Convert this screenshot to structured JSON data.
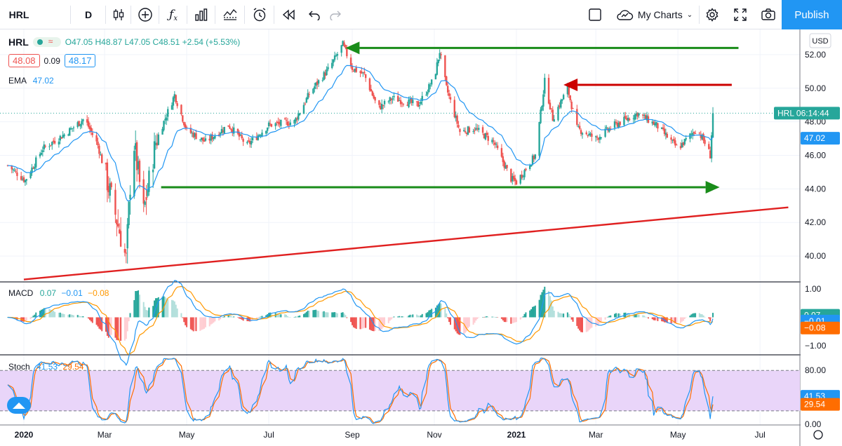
{
  "toolbar": {
    "symbol": "HRL",
    "interval": "D",
    "my_charts": "My Charts",
    "publish": "Publish"
  },
  "legend": {
    "symbol": "HRL",
    "ohlc": "O47.05  H48.87  L47.05  C48.51  +2.54 (+5.53%)",
    "bid": "48.08",
    "spread": "0.09",
    "ask": "48.17",
    "ema_label": "EMA",
    "ema_value": "47.02",
    "macd_label": "MACD",
    "macd_v1": "0.07",
    "macd_v2": "−0.01",
    "macd_v3": "−0.08",
    "stoch_label": "Stoch",
    "stoch_k": "41.53",
    "stoch_d": "29.54"
  },
  "axis": {
    "currency": "USD",
    "price_ticks": [
      "52.00",
      "50.00",
      "48.00",
      "46.00",
      "44.00",
      "42.00",
      "40.00"
    ],
    "macd_ticks": [
      "1.00",
      "0.00",
      "−1.00"
    ],
    "stoch_ticks": [
      "80.00",
      "0.00"
    ],
    "time_ticks": [
      "2020",
      "Mar",
      "May",
      "Jul",
      "Sep",
      "Nov",
      "2021",
      "Mar",
      "May",
      "Jul"
    ]
  },
  "tags": {
    "price": "HRL  06:14:44",
    "ema": "47.02",
    "macd_1": "0.07",
    "macd_2": "−0.01",
    "macd_3": "−0.08",
    "stoch_k": "41.53",
    "stoch_d": "29.54"
  },
  "colors": {
    "up": "#26a69a",
    "down": "#ef5350",
    "ema": "#2196f3",
    "macd": "#2196f3",
    "signal": "#ff9800",
    "stoch_k": "#2196f3",
    "stoch_d": "#ff6d00",
    "stoch_band": "#e9d5f9",
    "green_arrow": "#198c19",
    "red_arrow": "#cc0000",
    "trendline": "#e02020"
  },
  "chart_data": {
    "type": "candlestick",
    "symbol": "HRL",
    "interval": "D",
    "ylim": [
      38.5,
      53.5
    ],
    "x_range": [
      "2020-01",
      "2021-07"
    ],
    "last_close": 48.51,
    "ema": 47.02,
    "price_path": [
      [
        "2019-12-20",
        45.4
      ],
      [
        "2020-01-02",
        44.5
      ],
      [
        "2020-01-15",
        46.4
      ],
      [
        "2020-02-01",
        47.3
      ],
      [
        "2020-02-15",
        48.2
      ],
      [
        "2020-02-25",
        46.6
      ],
      [
        "2020-03-05",
        43.8
      ],
      [
        "2020-03-12",
        41.5
      ],
      [
        "2020-03-17",
        39.8
      ],
      [
        "2020-03-22",
        47.2
      ],
      [
        "2020-03-30",
        42.6
      ],
      [
        "2020-04-08",
        46.8
      ],
      [
        "2020-04-22",
        49.6
      ],
      [
        "2020-05-01",
        47.5
      ],
      [
        "2020-05-15",
        46.8
      ],
      [
        "2020-06-01",
        47.8
      ],
      [
        "2020-06-15",
        46.6
      ],
      [
        "2020-07-01",
        47.8
      ],
      [
        "2020-07-20",
        48.0
      ],
      [
        "2020-08-01",
        49.8
      ],
      [
        "2020-08-15",
        51.2
      ],
      [
        "2020-08-25",
        52.6
      ],
      [
        "2020-09-01",
        51.2
      ],
      [
        "2020-09-10",
        50.8
      ],
      [
        "2020-09-20",
        48.8
      ],
      [
        "2020-10-01",
        49.4
      ],
      [
        "2020-10-20",
        49.0
      ],
      [
        "2020-11-01",
        50.6
      ],
      [
        "2020-11-05",
        52.2
      ],
      [
        "2020-11-10",
        50.0
      ],
      [
        "2020-11-20",
        47.4
      ],
      [
        "2020-12-01",
        47.6
      ],
      [
        "2020-12-15",
        46.8
      ],
      [
        "2020-12-28",
        44.6
      ],
      [
        "2021-01-01",
        44.4
      ],
      [
        "2021-01-15",
        46.0
      ],
      [
        "2021-01-22",
        50.4
      ],
      [
        "2021-01-28",
        48.2
      ],
      [
        "2021-02-08",
        50.0
      ],
      [
        "2021-02-15",
        47.6
      ],
      [
        "2021-03-01",
        47.0
      ],
      [
        "2021-03-15",
        47.8
      ],
      [
        "2021-04-01",
        48.5
      ],
      [
        "2021-04-15",
        47.8
      ],
      [
        "2021-05-01",
        46.4
      ],
      [
        "2021-05-15",
        47.6
      ],
      [
        "2021-05-22",
        46.6
      ],
      [
        "2021-05-25",
        46.0
      ],
      [
        "2021-05-27",
        48.5
      ]
    ],
    "annotations": [
      {
        "type": "arrow",
        "color": "green",
        "y": 52.4,
        "from": "2021-06-15",
        "to": "2020-08-27"
      },
      {
        "type": "arrow",
        "color": "red",
        "y": 50.2,
        "from": "2021-06-10",
        "to": "2021-02-05"
      },
      {
        "type": "arrow",
        "color": "green",
        "y": 44.1,
        "from": "2020-04-12",
        "to": "2021-06-01"
      },
      {
        "type": "trendline",
        "color": "red",
        "from": [
          "2020-01-01",
          38.6
        ],
        "to": [
          "2021-07-22",
          42.9
        ]
      }
    ],
    "macd": {
      "macd": 0.07,
      "signal": -0.01,
      "histogram": -0.08,
      "ylim": [
        -1.3,
        1.2
      ]
    },
    "stochastic": {
      "k": 41.53,
      "d": 29.54,
      "ylim": [
        0,
        100
      ],
      "bands": [
        20,
        80
      ]
    }
  }
}
